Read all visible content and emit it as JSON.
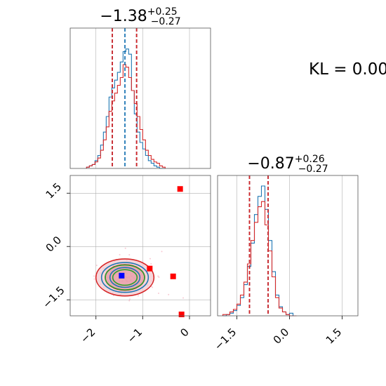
{
  "kl_label": "KL = 0.00",
  "chart_data": [
    {
      "type": "histogram",
      "panel": "marginal-x",
      "title": {
        "main": "−1.38",
        "sup": "+0.25",
        "sub": "−0.27"
      },
      "xlim": [
        -2.55,
        0.45
      ],
      "grid": true,
      "bins": [
        -2.2,
        -2.14,
        -2.08,
        -2.02,
        -1.96,
        -1.9,
        -1.84,
        -1.78,
        -1.72,
        -1.66,
        -1.6,
        -1.54,
        -1.48,
        -1.42,
        -1.36,
        -1.3,
        -1.24,
        -1.18,
        -1.12,
        -1.06,
        -1.0,
        -0.94,
        -0.88,
        -0.82,
        -0.76,
        -0.7,
        -0.64,
        -0.58
      ],
      "series": [
        {
          "color": "#1f77b4",
          "counts": [
            0.01,
            0.02,
            0.03,
            0.06,
            0.1,
            0.18,
            0.28,
            0.4,
            0.55,
            0.62,
            0.68,
            0.74,
            0.82,
            0.9,
            0.92,
            0.88,
            0.6,
            0.42,
            0.28,
            0.2,
            0.15,
            0.1,
            0.06,
            0.04,
            0.02,
            0.01,
            0.0,
            0.0
          ],
          "quantiles": [
            -1.65,
            -1.38,
            -1.13
          ]
        },
        {
          "color": "#d62728",
          "counts": [
            0.01,
            0.02,
            0.03,
            0.05,
            0.08,
            0.14,
            0.22,
            0.32,
            0.44,
            0.52,
            0.58,
            0.64,
            0.7,
            0.8,
            0.78,
            0.7,
            0.6,
            0.5,
            0.4,
            0.3,
            0.22,
            0.14,
            0.1,
            0.07,
            0.05,
            0.04,
            0.02,
            0.01
          ],
          "quantiles": [
            -1.65,
            -1.13
          ]
        }
      ]
    },
    {
      "type": "histogram",
      "panel": "marginal-y",
      "title": {
        "main": "−0.87",
        "sup": "+0.26",
        "sub": "−0.27"
      },
      "xlim": [
        -2.05,
        1.95
      ],
      "xticks": [
        "−1.5",
        "0.0",
        "1.5"
      ],
      "xtick_values": [
        -1.5,
        0.0,
        1.5
      ],
      "grid": true,
      "bins": [
        -1.9,
        -1.8,
        -1.7,
        -1.6,
        -1.5,
        -1.4,
        -1.3,
        -1.2,
        -1.1,
        -1.0,
        -0.9,
        -0.8,
        -0.7,
        -0.6,
        -0.5,
        -0.4,
        -0.3,
        -0.2,
        -0.1,
        0.0,
        0.1
      ],
      "series": [
        {
          "color": "#1f77b4",
          "counts": [
            0.0,
            0.01,
            0.02,
            0.04,
            0.08,
            0.14,
            0.24,
            0.38,
            0.56,
            0.78,
            0.92,
            1.0,
            0.82,
            0.58,
            0.34,
            0.16,
            0.07,
            0.03,
            0.01,
            0.02,
            0.0
          ],
          "quantiles": [
            -1.14,
            -0.61
          ]
        },
        {
          "color": "#d62728",
          "counts": [
            0.01,
            0.01,
            0.03,
            0.05,
            0.09,
            0.16,
            0.26,
            0.4,
            0.58,
            0.72,
            0.84,
            0.88,
            0.7,
            0.5,
            0.3,
            0.14,
            0.06,
            0.03,
            0.01,
            0.0,
            0.0
          ],
          "quantiles": [
            -1.14,
            -0.61
          ]
        }
      ]
    },
    {
      "type": "scatter",
      "panel": "joint",
      "xlim": [
        -2.55,
        0.45
      ],
      "ylim": [
        -1.95,
        2.0
      ],
      "xticks": [
        "−2",
        "−1",
        "0"
      ],
      "xtick_values": [
        -2,
        -1,
        0
      ],
      "yticks": [
        "1.5",
        "0.0",
        "−1.5"
      ],
      "ytick_values": [
        1.5,
        0.0,
        -1.5
      ],
      "grid": true,
      "contour_center": [
        -1.38,
        -0.87
      ],
      "contour_levels": [
        {
          "color": "#d62728",
          "rx": 0.62,
          "ry": 0.52
        },
        {
          "color": "#d62728",
          "rx": 0.42,
          "ry": 0.36
        },
        {
          "color": "#1f77b4",
          "rx": 0.5,
          "ry": 0.42
        },
        {
          "color": "#1f77b4",
          "rx": 0.32,
          "ry": 0.28
        },
        {
          "color": "#2ca02c",
          "rx": 0.42,
          "ry": 0.35
        },
        {
          "color": "#2ca02c",
          "rx": 0.26,
          "ry": 0.22
        }
      ],
      "points_red": [
        [
          -0.2,
          1.62
        ],
        [
          -0.85,
          -0.62
        ],
        [
          -0.35,
          -0.84
        ],
        [
          -0.17,
          -1.91
        ]
      ],
      "point_blue": [
        -1.45,
        -0.82
      ]
    }
  ]
}
